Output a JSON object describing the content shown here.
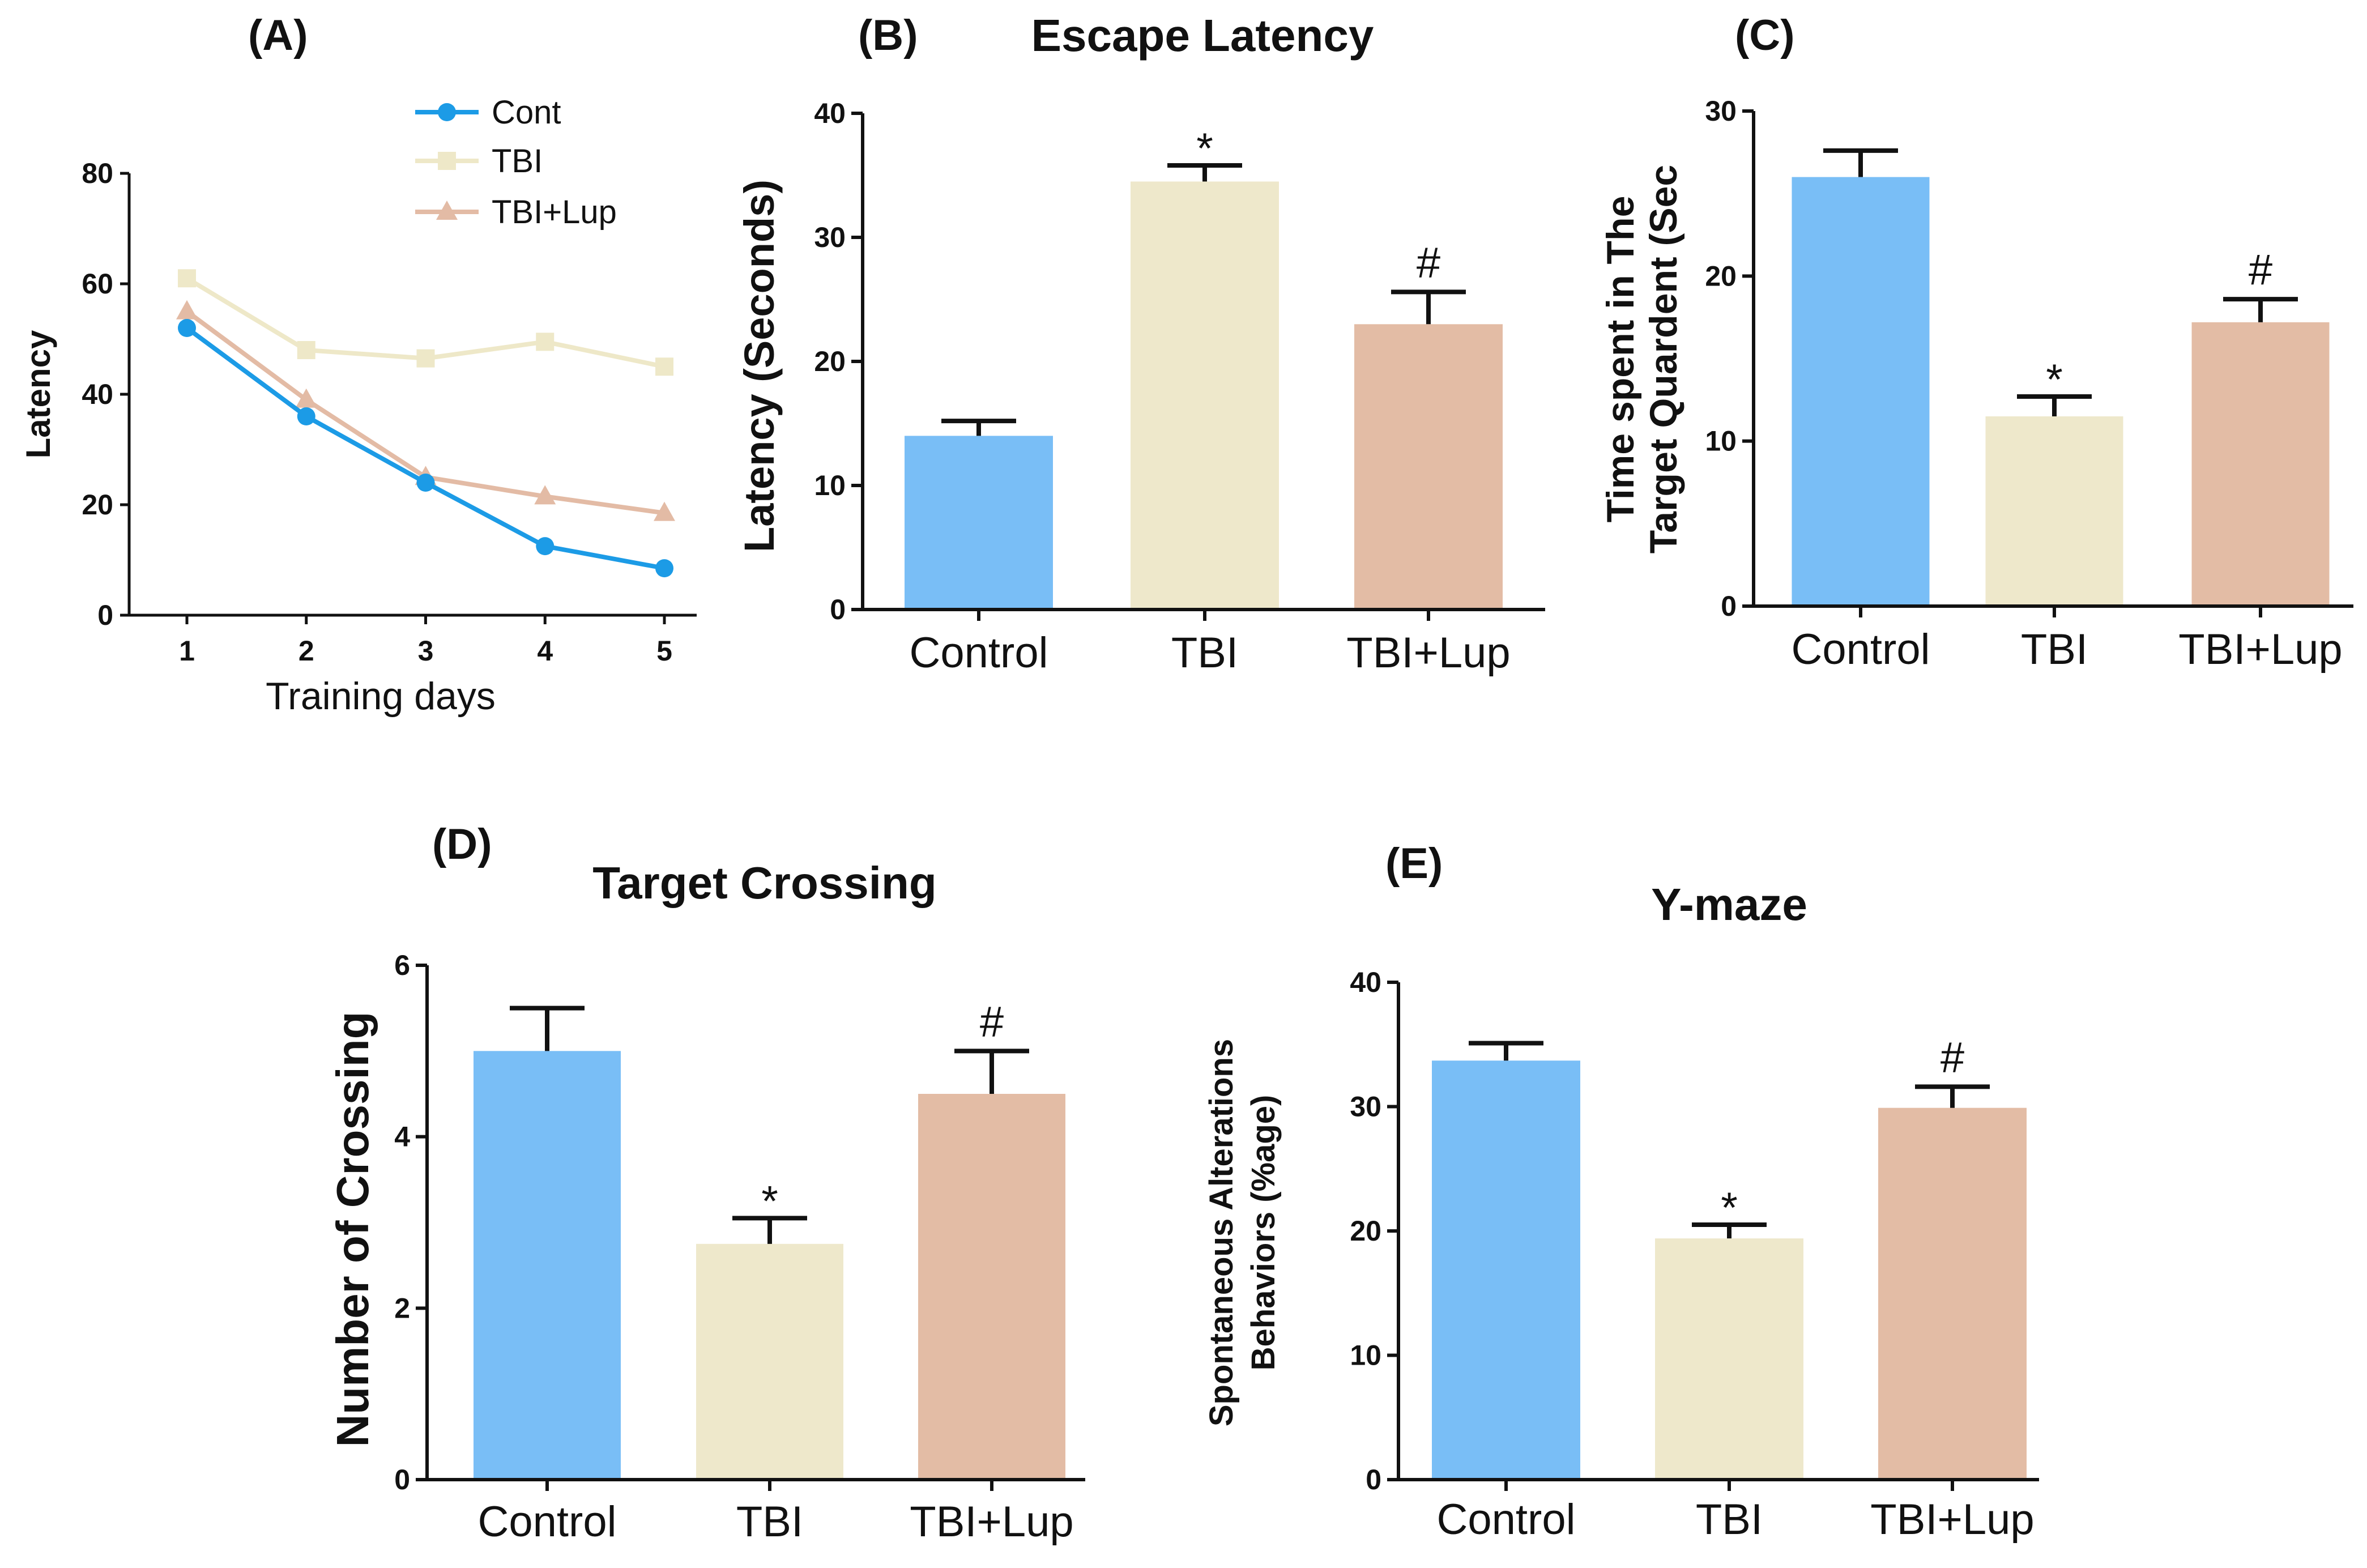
{
  "colors": {
    "cont": "#1C9BE6",
    "tbi": "#EEE8C8",
    "lup": "#E3BBA5",
    "control_bar": "#79BEF6",
    "tbi_bar": "#EEE8CB",
    "lup_bar": "#E3BCA5",
    "axis": "#111111"
  },
  "chart_data": [
    {
      "id": "A",
      "type": "line",
      "panel_label": "(A)",
      "title": "",
      "xlabel": "Training days",
      "ylabel": "Latency",
      "x": [
        1,
        2,
        3,
        4,
        5
      ],
      "xlim": [
        0.5,
        5.5
      ],
      "ylim": [
        0,
        80
      ],
      "yticks": [
        0,
        20,
        40,
        60,
        80
      ],
      "legend_position": "top-right",
      "series": [
        {
          "name": "Cont",
          "marker": "circle",
          "values": [
            52,
            36,
            24,
            12.5,
            8.5
          ]
        },
        {
          "name": "TBI",
          "marker": "square",
          "values": [
            61,
            48,
            46.5,
            49.5,
            45
          ]
        },
        {
          "name": "TBI+Lup",
          "marker": "triangle",
          "values": [
            55,
            39,
            25,
            21.5,
            18.5
          ]
        }
      ]
    },
    {
      "id": "B",
      "type": "bar",
      "panel_label": "(B)",
      "title": "Escape Latency",
      "ylabel": "Latency (Seconds)",
      "categories": [
        "Control",
        "TBI",
        "TBI+Lup"
      ],
      "values": [
        14,
        34.5,
        23
      ],
      "errors": [
        1.2,
        1.3,
        2.6
      ],
      "annotations": [
        "",
        "*",
        "#"
      ],
      "ylim": [
        0,
        40
      ],
      "yticks": [
        0,
        10,
        20,
        30,
        40
      ]
    },
    {
      "id": "C",
      "type": "bar",
      "panel_label": "(C)",
      "title": "",
      "ylabel_lines": [
        "Time spent in The",
        "Target Quardent (Sec"
      ],
      "categories": [
        "Control",
        "TBI",
        "TBI+Lup"
      ],
      "values": [
        26,
        11.5,
        17.2
      ],
      "errors": [
        1.6,
        1.2,
        1.4
      ],
      "annotations": [
        "",
        "*",
        "#"
      ],
      "ylim": [
        0,
        30
      ],
      "yticks": [
        0,
        10,
        20,
        30
      ]
    },
    {
      "id": "D",
      "type": "bar",
      "panel_label": "(D)",
      "title": "Target Crossing",
      "ylabel": "Number of Crossing",
      "categories": [
        "Control",
        "TBI",
        "TBI+Lup"
      ],
      "values": [
        5,
        2.75,
        4.5
      ],
      "errors": [
        0.5,
        0.3,
        0.5
      ],
      "annotations": [
        "",
        "*",
        "#"
      ],
      "ylim": [
        0,
        6
      ],
      "yticks": [
        0,
        2,
        4,
        6
      ]
    },
    {
      "id": "E",
      "type": "bar",
      "panel_label": "(E)",
      "title": "Y-maze",
      "ylabel_lines": [
        "Spontaneous Alterations",
        "Behaviors (%age)"
      ],
      "categories": [
        "Control",
        "TBI",
        "TBI+Lup"
      ],
      "values": [
        33.7,
        19.4,
        29.9
      ],
      "errors": [
        1.4,
        1.1,
        1.7
      ],
      "annotations": [
        "",
        "*",
        "#"
      ],
      "ylim": [
        0,
        40
      ],
      "yticks": [
        0,
        10,
        20,
        30,
        40
      ]
    }
  ]
}
